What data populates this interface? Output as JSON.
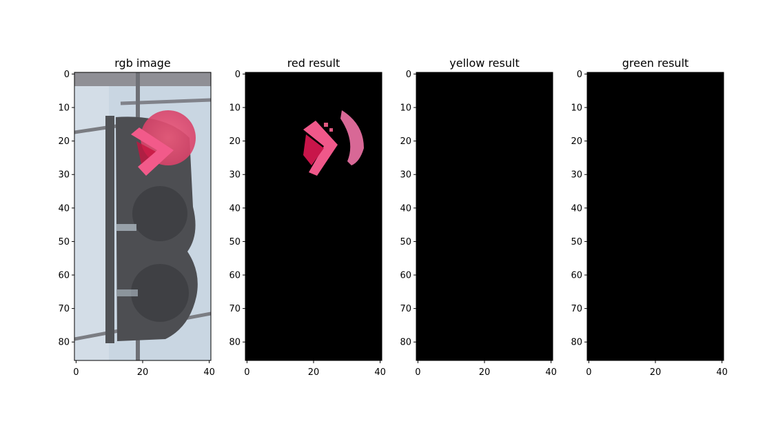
{
  "chart_data": [
    {
      "type": "image",
      "title": "rgb image",
      "xlim": [
        0,
        40
      ],
      "ylim": [
        86,
        0
      ],
      "xticks": [
        0,
        20,
        40
      ],
      "yticks": [
        0,
        10,
        20,
        30,
        40,
        50,
        60,
        70,
        80
      ],
      "content": "traffic-light-photo-red-right-arrow-lit",
      "lit_color": "#e8355f"
    },
    {
      "type": "image",
      "title": "red result",
      "xlim": [
        0,
        40
      ],
      "ylim": [
        86,
        0
      ],
      "xticks": [
        0,
        20,
        40
      ],
      "yticks": [
        0,
        10,
        20,
        30,
        40,
        50,
        60,
        70,
        80
      ],
      "content": "red-mask-arrow-on-black",
      "lit_color": "#e8355f"
    },
    {
      "type": "image",
      "title": "yellow result",
      "xlim": [
        0,
        40
      ],
      "ylim": [
        86,
        0
      ],
      "xticks": [
        0,
        20,
        40
      ],
      "yticks": [
        0,
        10,
        20,
        30,
        40,
        50,
        60,
        70,
        80
      ],
      "content": "empty-black-mask"
    },
    {
      "type": "image",
      "title": "green result",
      "xlim": [
        0,
        40
      ],
      "ylim": [
        86,
        0
      ],
      "xticks": [
        0,
        20,
        40
      ],
      "yticks": [
        0,
        10,
        20,
        30,
        40,
        50,
        60,
        70,
        80
      ],
      "content": "empty-black-mask"
    }
  ]
}
